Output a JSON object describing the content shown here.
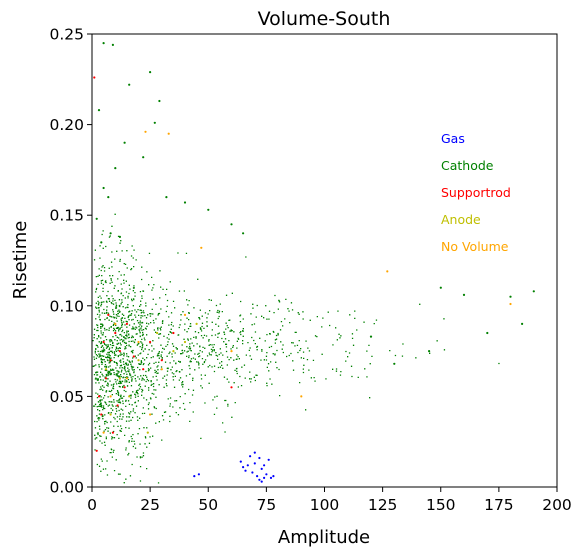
{
  "chart_data": {
    "type": "scatter",
    "title": "Volume-South",
    "xlabel": "Amplitude",
    "ylabel": "Risetime",
    "xlim": [
      0,
      200
    ],
    "ylim": [
      0,
      0.25
    ],
    "x_ticks": [
      "0",
      "25",
      "50",
      "75",
      "100",
      "125",
      "150",
      "175",
      "200"
    ],
    "y_ticks": [
      "0.00",
      "0.05",
      "0.10",
      "0.15",
      "0.20",
      "0.25"
    ],
    "grid": false,
    "legend_position": "right",
    "series": [
      {
        "name": "Gas",
        "color": "#0000ff",
        "points": [
          [
            44,
            0.006
          ],
          [
            46,
            0.007
          ],
          [
            64,
            0.014
          ],
          [
            65,
            0.011
          ],
          [
            66,
            0.009
          ],
          [
            67,
            0.012
          ],
          [
            68,
            0.017
          ],
          [
            69,
            0.008
          ],
          [
            70,
            0.019
          ],
          [
            70,
            0.013
          ],
          [
            71,
            0.006
          ],
          [
            72,
            0.004
          ],
          [
            72,
            0.016
          ],
          [
            73,
            0.01
          ],
          [
            73,
            0.003
          ],
          [
            74,
            0.005
          ],
          [
            74,
            0.012
          ],
          [
            75,
            0.007
          ],
          [
            76,
            0.015
          ],
          [
            77,
            0.005
          ],
          [
            78,
            0.006
          ]
        ]
      },
      {
        "name": "Cathode",
        "color": "#008000",
        "points": [
          [
            5,
            0.245
          ],
          [
            9,
            0.244
          ],
          [
            25,
            0.229
          ],
          [
            29,
            0.213
          ],
          [
            3,
            0.208
          ],
          [
            16,
            0.222
          ],
          [
            27,
            0.201
          ],
          [
            14,
            0.19
          ],
          [
            10,
            0.176
          ],
          [
            22,
            0.182
          ],
          [
            5,
            0.165
          ],
          [
            7,
            0.16
          ],
          [
            40,
            0.157
          ],
          [
            50,
            0.153
          ],
          [
            60,
            0.145
          ],
          [
            65,
            0.14
          ],
          [
            32,
            0.16
          ],
          [
            150,
            0.11
          ],
          [
            160,
            0.106
          ],
          [
            180,
            0.105
          ],
          [
            190,
            0.108
          ],
          [
            185,
            0.09
          ],
          [
            170,
            0.085
          ],
          [
            145,
            0.075
          ],
          [
            130,
            0.068
          ],
          [
            120,
            0.083
          ],
          [
            2,
            0.148
          ],
          [
            4,
            0.135
          ],
          [
            8,
            0.14
          ],
          [
            12,
            0.138
          ]
        ]
      },
      {
        "name": "Supportrod",
        "color": "#ff0000",
        "points": [
          [
            1,
            0.226
          ],
          [
            5,
            0.08
          ],
          [
            8,
            0.07
          ],
          [
            10,
            0.085
          ],
          [
            6,
            0.06
          ],
          [
            3,
            0.05
          ],
          [
            12,
            0.075
          ],
          [
            15,
            0.09
          ],
          [
            18,
            0.072
          ],
          [
            22,
            0.065
          ],
          [
            4,
            0.04
          ],
          [
            9,
            0.03
          ],
          [
            14,
            0.055
          ],
          [
            25,
            0.08
          ],
          [
            30,
            0.07
          ],
          [
            2,
            0.02
          ],
          [
            7,
            0.095
          ],
          [
            11,
            0.045
          ],
          [
            60,
            0.055
          ],
          [
            35,
            0.085
          ]
        ]
      },
      {
        "name": "Anode",
        "color": "#bfbf00",
        "points": [
          [
            12,
            0.06
          ],
          [
            20,
            0.07
          ],
          [
            28,
            0.085
          ],
          [
            8,
            0.04
          ],
          [
            35,
            0.075
          ],
          [
            45,
            0.09
          ],
          [
            16,
            0.05
          ],
          [
            24,
            0.03
          ],
          [
            6,
            0.065
          ],
          [
            40,
            0.08
          ]
        ]
      },
      {
        "name": "No Volume",
        "color": "#ffa500",
        "points": [
          [
            23,
            0.196
          ],
          [
            33,
            0.195
          ],
          [
            47,
            0.132
          ],
          [
            127,
            0.119
          ],
          [
            180,
            0.101
          ],
          [
            10,
            0.09
          ],
          [
            15,
            0.06
          ],
          [
            20,
            0.08
          ],
          [
            30,
            0.065
          ],
          [
            5,
            0.03
          ],
          [
            8,
            0.05
          ],
          [
            90,
            0.05
          ],
          [
            60,
            0.075
          ],
          [
            40,
            0.095
          ],
          [
            25,
            0.04
          ]
        ]
      }
    ],
    "background_cloud": {
      "series": "Cathode",
      "core": {
        "x_min": 0,
        "x_max": 40,
        "y_min": 0,
        "y_max": 0.13
      },
      "tail": {
        "x_max": 190,
        "y_center": 0.08
      }
    }
  }
}
